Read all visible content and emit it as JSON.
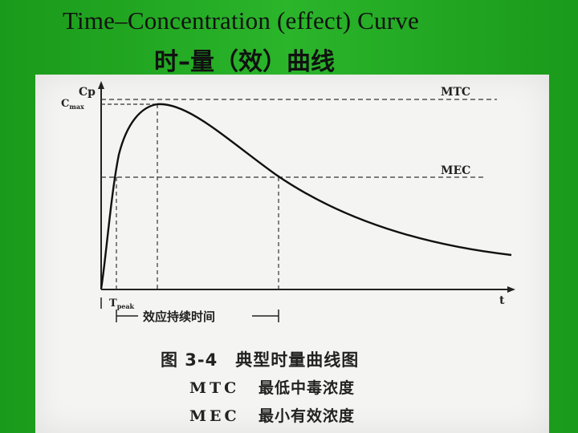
{
  "slide": {
    "title_en": "Time–Concentration (effect) Curve",
    "title_cn": "时–量（效）曲线"
  },
  "diagram": {
    "y_axis_label": "Cp",
    "cmax_label": "C",
    "cmax_sub": "max",
    "mtc_label": "MTC",
    "mec_label": "MEC",
    "x_axis_label": "t",
    "tpeak_label": "T",
    "tpeak_sub": "peak",
    "duration_label": "效应持续时间"
  },
  "caption": {
    "title": "图 3-4　典型时量曲线图",
    "rows": [
      {
        "abbr": "MTC",
        "desc": "最低中毒浓度"
      },
      {
        "abbr": "MEC",
        "desc": "最小有效浓度"
      }
    ]
  },
  "colors": {
    "background": "#1fa31f",
    "figure": "#f4f4f2",
    "ink": "#222222"
  }
}
